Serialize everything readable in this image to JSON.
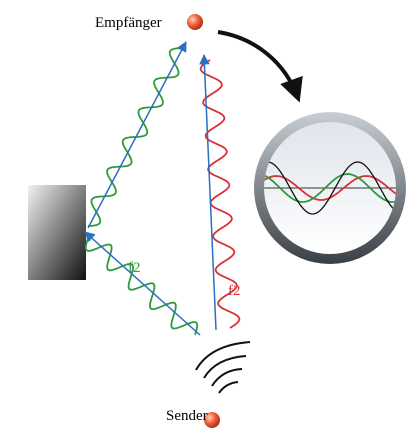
{
  "receiver": {
    "label": "Empfänger"
  },
  "sender": {
    "label": "Sender"
  },
  "waves": [
    {
      "label": "f2"
    },
    {
      "label": "f2"
    }
  ]
}
